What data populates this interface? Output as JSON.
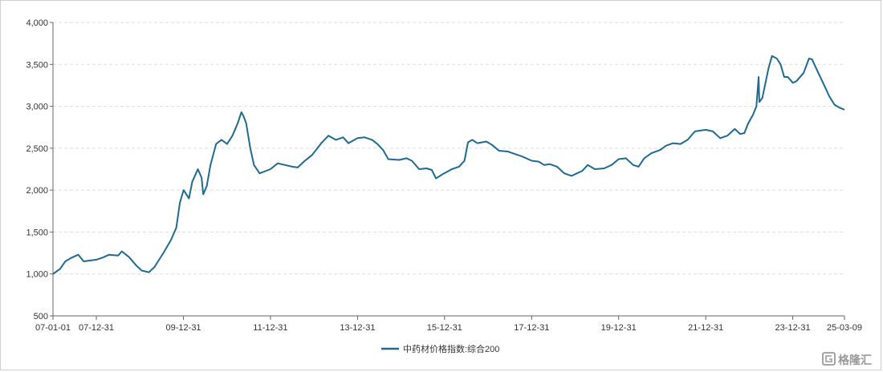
{
  "chart_data": {
    "type": "line",
    "title": "",
    "xlabel": "",
    "ylabel": "",
    "ylim": [
      500,
      4000
    ],
    "y_ticks": [
      500,
      1000,
      1500,
      2000,
      2500,
      3000,
      3500,
      4000
    ],
    "y_tick_labels": [
      "500",
      "1,000",
      "1,500",
      "2,000",
      "2,500",
      "3,000",
      "3,500",
      "4,000"
    ],
    "x_range": [
      "2007-01-01",
      "2025-03-09"
    ],
    "x_ticks": [
      "2007-01-01",
      "2007-12-31",
      "2009-12-31",
      "2011-12-31",
      "2013-12-31",
      "2015-12-31",
      "2017-12-31",
      "2019-12-31",
      "2021-12-31",
      "2023-12-31",
      "2025-03-09"
    ],
    "x_tick_labels": [
      "07-01-01",
      "07-12-31",
      "09-12-31",
      "11-12-31",
      "13-12-31",
      "15-12-31",
      "17-12-31",
      "19-12-31",
      "21-12-31",
      "23-12-31",
      "25-03-09"
    ],
    "grid": "horizontal-dashed",
    "legend": "bottom-center",
    "line_color": "#1f6b8f",
    "series": [
      {
        "name": "中药材价格指数:综合200",
        "points": [
          [
            "2007-01-01",
            1000
          ],
          [
            "2007-03-01",
            1060
          ],
          [
            "2007-04-15",
            1150
          ],
          [
            "2007-06-01",
            1190
          ],
          [
            "2007-08-01",
            1230
          ],
          [
            "2007-09-15",
            1150
          ],
          [
            "2007-12-31",
            1170
          ],
          [
            "2008-03-01",
            1200
          ],
          [
            "2008-04-15",
            1230
          ],
          [
            "2008-07-01",
            1220
          ],
          [
            "2008-08-01",
            1270
          ],
          [
            "2008-10-01",
            1200
          ],
          [
            "2008-12-01",
            1100
          ],
          [
            "2009-01-15",
            1040
          ],
          [
            "2009-03-15",
            1020
          ],
          [
            "2009-05-01",
            1080
          ],
          [
            "2009-06-01",
            1150
          ],
          [
            "2009-07-15",
            1250
          ],
          [
            "2009-09-15",
            1400
          ],
          [
            "2009-11-01",
            1550
          ],
          [
            "2009-12-01",
            1850
          ],
          [
            "2010-01-01",
            2000
          ],
          [
            "2010-02-15",
            1900
          ],
          [
            "2010-03-15",
            2100
          ],
          [
            "2010-05-01",
            2250
          ],
          [
            "2010-06-01",
            2150
          ],
          [
            "2010-06-15",
            1950
          ],
          [
            "2010-07-15",
            2050
          ],
          [
            "2010-08-15",
            2300
          ],
          [
            "2010-10-01",
            2550
          ],
          [
            "2010-11-15",
            2600
          ],
          [
            "2011-01-01",
            2550
          ],
          [
            "2011-02-15",
            2650
          ],
          [
            "2011-04-01",
            2800
          ],
          [
            "2011-05-01",
            2930
          ],
          [
            "2011-05-20",
            2880
          ],
          [
            "2011-06-10",
            2800
          ],
          [
            "2011-07-15",
            2500
          ],
          [
            "2011-08-15",
            2300
          ],
          [
            "2011-10-01",
            2200
          ],
          [
            "2011-12-31",
            2250
          ],
          [
            "2012-03-01",
            2320
          ],
          [
            "2012-05-01",
            2300
          ],
          [
            "2012-07-01",
            2280
          ],
          [
            "2012-08-15",
            2270
          ],
          [
            "2012-10-15",
            2350
          ],
          [
            "2012-12-15",
            2420
          ],
          [
            "2013-03-01",
            2560
          ],
          [
            "2013-05-01",
            2650
          ],
          [
            "2013-07-01",
            2600
          ],
          [
            "2013-09-01",
            2630
          ],
          [
            "2013-10-15",
            2560
          ],
          [
            "2013-12-31",
            2620
          ],
          [
            "2014-03-01",
            2630
          ],
          [
            "2014-05-01",
            2600
          ],
          [
            "2014-06-15",
            2550
          ],
          [
            "2014-08-01",
            2480
          ],
          [
            "2014-09-15",
            2370
          ],
          [
            "2014-12-15",
            2360
          ],
          [
            "2015-02-15",
            2380
          ],
          [
            "2015-04-01",
            2350
          ],
          [
            "2015-06-01",
            2250
          ],
          [
            "2015-08-01",
            2260
          ],
          [
            "2015-09-15",
            2240
          ],
          [
            "2015-10-20",
            2140
          ],
          [
            "2015-12-15",
            2190
          ],
          [
            "2016-03-01",
            2250
          ],
          [
            "2016-05-01",
            2280
          ],
          [
            "2016-06-15",
            2350
          ],
          [
            "2016-07-15",
            2570
          ],
          [
            "2016-08-20",
            2600
          ],
          [
            "2016-10-01",
            2560
          ],
          [
            "2016-12-15",
            2580
          ],
          [
            "2017-02-01",
            2540
          ],
          [
            "2017-04-01",
            2470
          ],
          [
            "2017-06-15",
            2460
          ],
          [
            "2017-08-15",
            2430
          ],
          [
            "2017-10-15",
            2400
          ],
          [
            "2017-12-31",
            2350
          ],
          [
            "2018-03-01",
            2340
          ],
          [
            "2018-04-15",
            2300
          ],
          [
            "2018-06-01",
            2310
          ],
          [
            "2018-08-01",
            2280
          ],
          [
            "2018-10-01",
            2200
          ],
          [
            "2018-12-01",
            2170
          ],
          [
            "2019-01-15",
            2200
          ],
          [
            "2019-03-01",
            2230
          ],
          [
            "2019-04-15",
            2300
          ],
          [
            "2019-06-15",
            2250
          ],
          [
            "2019-09-01",
            2260
          ],
          [
            "2019-11-01",
            2300
          ],
          [
            "2019-12-31",
            2370
          ],
          [
            "2020-03-01",
            2380
          ],
          [
            "2020-05-01",
            2300
          ],
          [
            "2020-06-15",
            2280
          ],
          [
            "2020-08-01",
            2380
          ],
          [
            "2020-10-01",
            2440
          ],
          [
            "2020-12-15",
            2480
          ],
          [
            "2021-02-01",
            2530
          ],
          [
            "2021-04-01",
            2560
          ],
          [
            "2021-06-01",
            2550
          ],
          [
            "2021-08-01",
            2600
          ],
          [
            "2021-10-01",
            2700
          ],
          [
            "2021-12-31",
            2720
          ],
          [
            "2022-03-01",
            2700
          ],
          [
            "2022-05-01",
            2620
          ],
          [
            "2022-07-01",
            2650
          ],
          [
            "2022-09-01",
            2730
          ],
          [
            "2022-10-15",
            2670
          ],
          [
            "2022-11-20",
            2680
          ],
          [
            "2022-12-20",
            2790
          ],
          [
            "2023-02-01",
            2900
          ],
          [
            "2023-03-01",
            3000
          ],
          [
            "2023-03-20",
            3350
          ],
          [
            "2023-03-25",
            3050
          ],
          [
            "2023-04-20",
            3100
          ],
          [
            "2023-06-10",
            3450
          ],
          [
            "2023-07-10",
            3600
          ],
          [
            "2023-08-20",
            3570
          ],
          [
            "2023-09-20",
            3500
          ],
          [
            "2023-10-20",
            3350
          ],
          [
            "2023-11-20",
            3350
          ],
          [
            "2023-12-31",
            3280
          ],
          [
            "2024-02-01",
            3300
          ],
          [
            "2024-04-01",
            3400
          ],
          [
            "2024-05-15",
            3570
          ],
          [
            "2024-06-10",
            3560
          ],
          [
            "2024-08-01",
            3400
          ],
          [
            "2024-09-20",
            3250
          ],
          [
            "2024-11-01",
            3120
          ],
          [
            "2024-12-15",
            3020
          ],
          [
            "2025-02-01",
            2980
          ],
          [
            "2025-03-09",
            2960
          ]
        ]
      }
    ]
  },
  "watermark": {
    "text": "格隆汇"
  }
}
